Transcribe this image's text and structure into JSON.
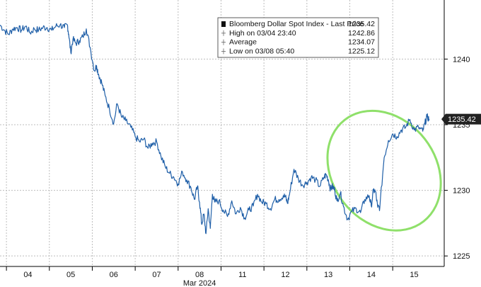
{
  "chart_data": {
    "type": "line",
    "grid": true,
    "legend_placement": "top-right",
    "x_unit": "trading days (Mar 2024)",
    "x_tick_labels": [
      "04",
      "05",
      "06",
      "07",
      "08",
      "11",
      "12",
      "13",
      "14",
      "15"
    ],
    "x_tick_values": [
      0,
      1,
      2,
      3,
      4,
      5,
      6,
      7,
      8,
      9
    ],
    "xlim": [
      -0.65,
      9.7
    ],
    "x_sublabel": "Mar 2024",
    "y_tick_labels": [
      "1225",
      "1230",
      "1235",
      "1240"
    ],
    "y_ticks": [
      1225,
      1230,
      1235,
      1240
    ],
    "ylim": [
      1224.2,
      1244.5
    ],
    "last_price_label": "1235.42",
    "colors": {
      "line": "#1f5fa8",
      "highlight": "#8fe06a",
      "tag_bg": "#222222"
    },
    "legend": {
      "icon": "candlestick-icon",
      "rows": [
        {
          "label": "Bloomberg Dollar Spot Index - Last Price",
          "value": "1235.42"
        },
        {
          "label": "High on 03/04 23:40",
          "value": "1242.86"
        },
        {
          "label": "Average",
          "value": "1234.07"
        },
        {
          "label": "Low on 03/08 05:40",
          "value": "1225.12"
        }
      ]
    },
    "annotation": {
      "type": "ellipse",
      "color": "#8fe06a",
      "x_range": [
        7.1,
        9.5
      ],
      "y_range": [
        1226.6,
        1236.4
      ]
    },
    "series": [
      {
        "x": [
          -0.65,
          -0.55,
          -0.45,
          -0.35,
          -0.25,
          -0.15,
          -0.05,
          0.05,
          0.15,
          0.25,
          0.35,
          0.45,
          0.55,
          0.65,
          0.75,
          0.85,
          0.92,
          0.95,
          1.0,
          1.05,
          1.12,
          1.2,
          1.28,
          1.36,
          1.45,
          1.55,
          1.6,
          1.65,
          1.72,
          1.8,
          1.9,
          2.0,
          2.08,
          2.18,
          2.28,
          2.4,
          2.5,
          2.6,
          2.7,
          2.8,
          2.9,
          3.0,
          3.1,
          3.2,
          3.3,
          3.4,
          3.5,
          3.6,
          3.7,
          3.8,
          3.88,
          3.95,
          4.0,
          4.05,
          4.1,
          4.15,
          4.2,
          4.25,
          4.3,
          4.35,
          4.45,
          4.55,
          4.65,
          4.75,
          4.85,
          4.95,
          5.05,
          5.15,
          5.25,
          5.35,
          5.45,
          5.55,
          5.65,
          5.75,
          5.85,
          5.95,
          6.0,
          6.05,
          6.1,
          6.2,
          6.3,
          6.4,
          6.5,
          6.6,
          6.7,
          6.8,
          6.9,
          6.95,
          7.0,
          7.05,
          7.1,
          7.15,
          7.2,
          7.28,
          7.35,
          7.45,
          7.55,
          7.65,
          7.75,
          7.85,
          7.95,
          8.0,
          8.05,
          8.1,
          8.15,
          8.2,
          8.3,
          8.4,
          8.5,
          8.6,
          8.7,
          8.8,
          8.9,
          9.0,
          9.1,
          9.2,
          9.25,
          9.3,
          9.35
        ],
        "values": [
          1242.6,
          1242.2,
          1241.9,
          1242.3,
          1242.4,
          1242.2,
          1242.5,
          1242.0,
          1242.3,
          1242.2,
          1242.4,
          1242.4,
          1242.2,
          1242.5,
          1242.6,
          1242.4,
          1242.6,
          1241.9,
          1240.5,
          1241.5,
          1241.2,
          1241.4,
          1241.7,
          1242.3,
          1240.9,
          1239.1,
          1239.5,
          1238.8,
          1238.2,
          1237.2,
          1236.2,
          1235.1,
          1236.6,
          1235.6,
          1235.3,
          1234.8,
          1234.1,
          1233.7,
          1233.9,
          1233.2,
          1233.6,
          1233.7,
          1232.6,
          1231.8,
          1231.3,
          1231.0,
          1230.5,
          1231.4,
          1230.8,
          1230.2,
          1229.3,
          1230.3,
          1229.1,
          1227.4,
          1228.2,
          1226.7,
          1228.6,
          1227.1,
          1229.7,
          1229.1,
          1229.2,
          1228.5,
          1228.0,
          1229.2,
          1228.2,
          1228.7,
          1227.9,
          1228.5,
          1228.8,
          1229.7,
          1229.1,
          1229.0,
          1228.6,
          1229.3,
          1229.3,
          1229.6,
          1229.5,
          1229.0,
          1229.8,
          1231.6,
          1230.9,
          1230.4,
          1230.6,
          1231.0,
          1230.8,
          1230.3,
          1231.0,
          1231.2,
          1230.8,
          1230.1,
          1230.3,
          1230.0,
          1229.2,
          1229.8,
          1228.8,
          1227.8,
          1228.4,
          1228.6,
          1228.3,
          1229.3,
          1229.6,
          1228.8,
          1230.0,
          1229.9,
          1228.7,
          1228.7,
          1232.5,
          1233.8,
          1234.3,
          1234.1,
          1234.6,
          1234.8,
          1235.4,
          1234.6,
          1234.8,
          1234.5,
          1235.1,
          1235.6,
          1235.42
        ]
      }
    ]
  }
}
